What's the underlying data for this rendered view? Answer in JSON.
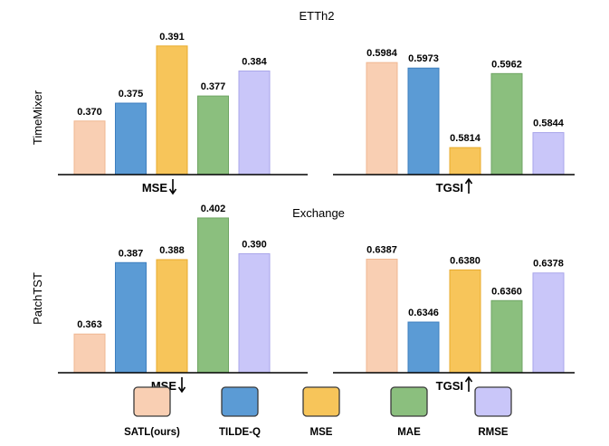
{
  "colors": {
    "fills": [
      "#f9cfb3",
      "#5b9bd5",
      "#f7c55a",
      "#8bbf7e",
      "#c9c6f9"
    ],
    "strokes": [
      "#f0b792",
      "#3e7fbf",
      "#e8ab2c",
      "#6fa564",
      "#a9a6ea"
    ],
    "axis": "#000000"
  },
  "titles": {
    "top": "ETTh2",
    "bottom": "Exchange",
    "row_top": "TimeMixer",
    "row_bottom": "PatchTST"
  },
  "legend": [
    "SATL(ours)",
    "TILDE-Q",
    "MSE",
    "MAE",
    "RMSE"
  ],
  "chart_data": [
    {
      "type": "bar",
      "title": "ETTh2",
      "model": "TimeMixer",
      "xlabel": "MSE",
      "direction": "down",
      "categories": [
        "SATL(ours)",
        "TILDE-Q",
        "MSE",
        "MAE",
        "RMSE"
      ],
      "values": [
        0.37,
        0.375,
        0.391,
        0.377,
        0.384
      ],
      "labels": [
        "0.370",
        "0.375",
        "0.391",
        "0.377",
        "0.384"
      ],
      "ylim": [
        0.355,
        0.3945
      ]
    },
    {
      "type": "bar",
      "title": "ETTh2",
      "model": "TimeMixer",
      "xlabel": "TGSI",
      "direction": "up",
      "categories": [
        "SATL(ours)",
        "TILDE-Q",
        "MSE",
        "MAE",
        "RMSE"
      ],
      "values": [
        0.5984,
        0.5973,
        0.5814,
        0.5962,
        0.5844
      ],
      "labels": [
        "0.5984",
        "0.5973",
        "0.5814",
        "0.5962",
        "0.5844"
      ],
      "ylim": [
        0.576,
        0.6006
      ]
    },
    {
      "type": "bar",
      "title": "Exchange",
      "model": "PatchTST",
      "xlabel": "MSE",
      "direction": "down",
      "categories": [
        "SATL(ours)",
        "TILDE-Q",
        "MSE",
        "MAE",
        "RMSE"
      ],
      "values": [
        0.363,
        0.387,
        0.388,
        0.402,
        0.39
      ],
      "labels": [
        "0.363",
        "0.387",
        "0.388",
        "0.402",
        "0.390"
      ],
      "ylim": [
        0.35,
        0.4035
      ]
    },
    {
      "type": "bar",
      "title": "Exchange",
      "model": "PatchTST",
      "xlabel": "TGSI",
      "direction": "up",
      "categories": [
        "SATL(ours)",
        "TILDE-Q",
        "MSE",
        "MAE",
        "RMSE"
      ],
      "values": [
        0.6387,
        0.6346,
        0.638,
        0.636,
        0.6378
      ],
      "labels": [
        "0.6387",
        "0.6346",
        "0.6380",
        "0.6360",
        "0.6378"
      ],
      "ylim": [
        0.6313,
        0.6392
      ]
    }
  ]
}
